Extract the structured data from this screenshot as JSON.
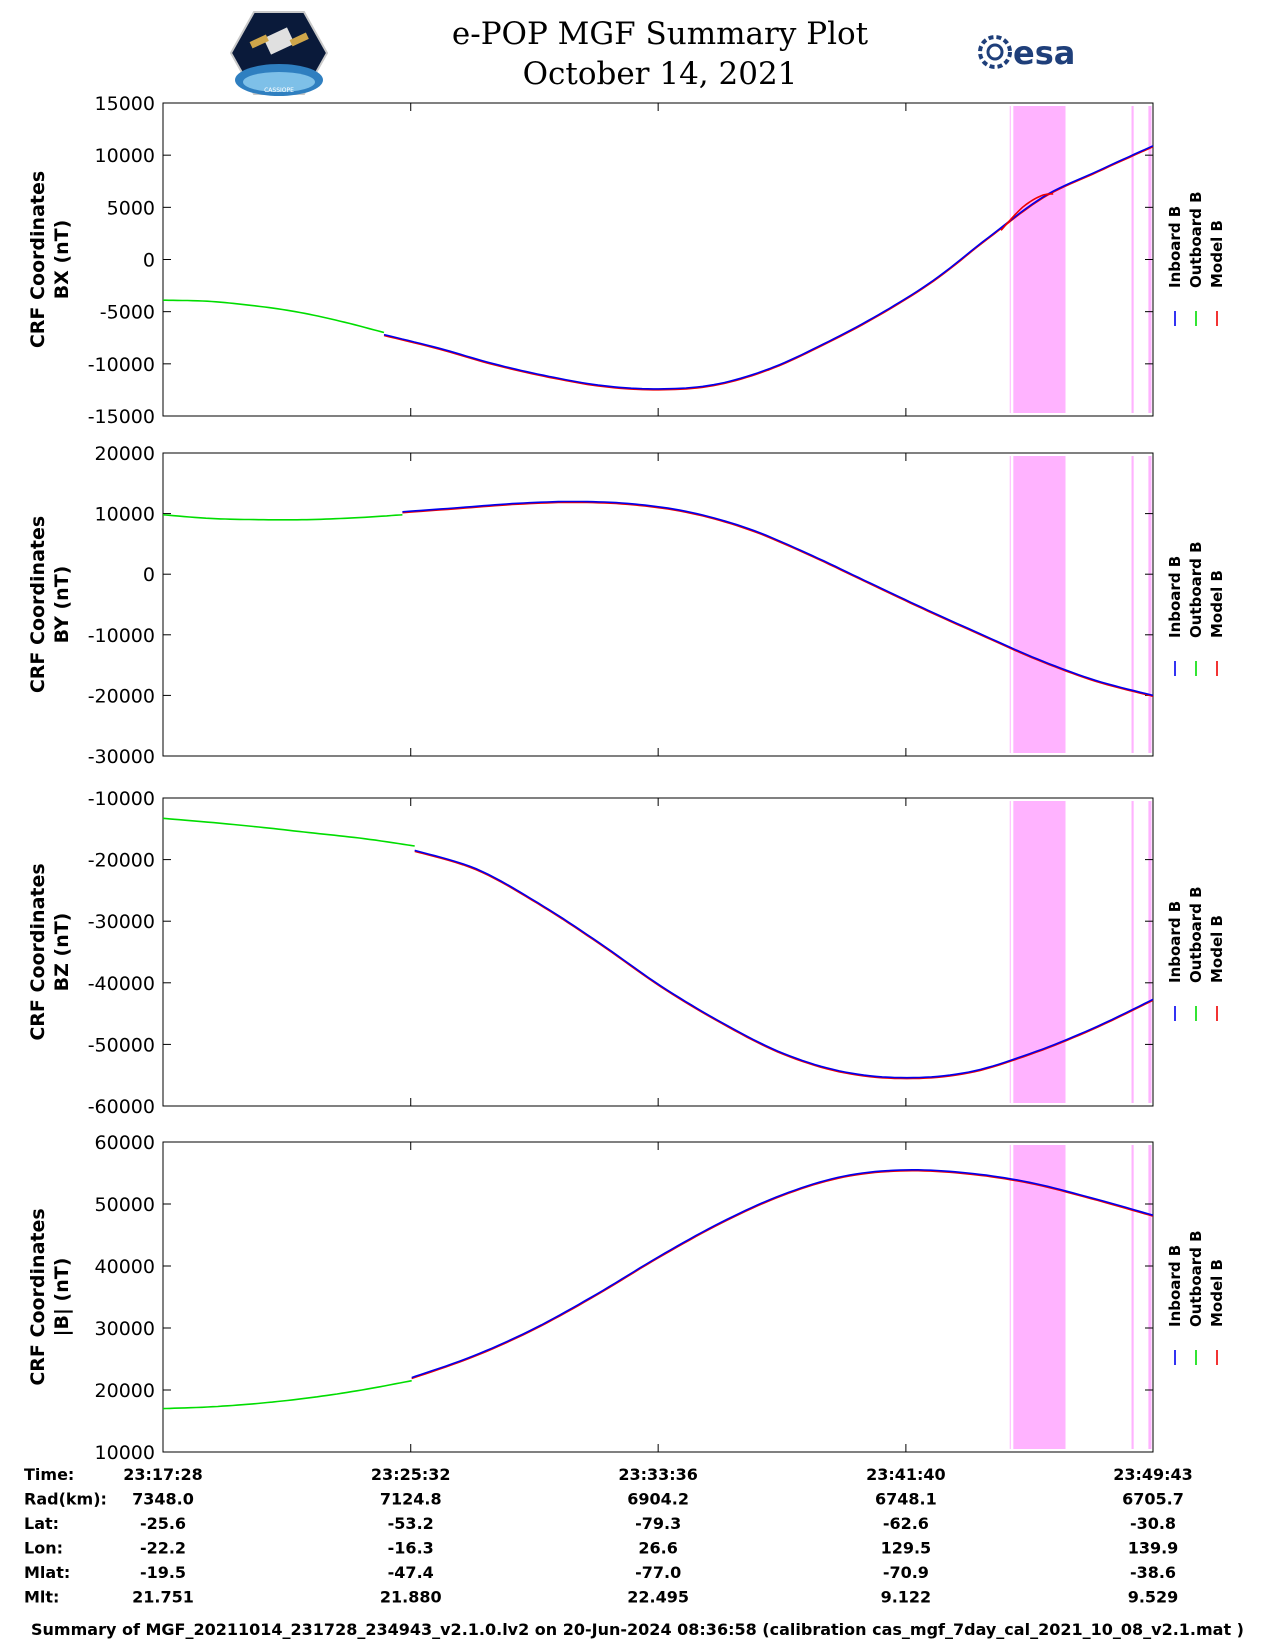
{
  "header": {
    "title_line1": "e-POP MGF Summary Plot",
    "title_line2": "October 14, 2021",
    "right_logo_text": "esa",
    "left_logo_text": "CASSIOPE"
  },
  "legend": [
    "Inboard B",
    "Outboard B",
    "Model B"
  ],
  "colors": {
    "inboard": "#0000ee",
    "outboard": "#00dd00",
    "model": "#ee0000",
    "shade": "#ffb3ff"
  },
  "chart_data": [
    {
      "type": "line",
      "ylabel_line1": "CRF Coordinates",
      "ylabel_line2": "BX (nT)",
      "ylim": [
        -15000,
        15000
      ],
      "yticks": [
        15000,
        10000,
        5000,
        0,
        -5000,
        -10000,
        -15000
      ],
      "x_minutes": [
        0,
        2,
        4,
        6,
        8,
        10,
        12,
        14,
        16,
        18,
        20,
        22,
        24,
        26,
        28,
        30,
        32.25
      ],
      "outboard": [
        -3900,
        -4000,
        -4400,
        -5000,
        -5900,
        -7000
      ],
      "inboard": [
        -7200,
        -8500,
        -10000,
        -11200,
        -12100,
        -12400,
        -12000,
        -10500,
        -8100,
        -5300,
        -2000,
        2100,
        6000,
        8500,
        10900
      ],
      "model_bump": [
        [
          27.3,
          2800
        ],
        [
          28.0,
          5000
        ],
        [
          28.6,
          6100
        ],
        [
          29.0,
          6300
        ]
      ]
    },
    {
      "type": "line",
      "ylabel_line1": "CRF Coordinates",
      "ylabel_line2": "BY (nT)",
      "ylim": [
        -30000,
        20000
      ],
      "yticks": [
        20000,
        10000,
        0,
        -10000,
        -20000,
        -30000
      ],
      "outboard": [
        9800,
        9200,
        9000,
        9000,
        9300,
        9800
      ],
      "inboard": [
        10300,
        11000,
        11700,
        12000,
        11600,
        10200,
        7500,
        3500,
        -1000,
        -5500,
        -9800,
        -14000,
        -17500,
        -20000
      ]
    },
    {
      "type": "line",
      "ylabel_line1": "CRF Coordinates",
      "ylabel_line2": "BZ (nT)",
      "ylim": [
        -60000,
        -10000
      ],
      "yticks": [
        -10000,
        -20000,
        -30000,
        -40000,
        -50000,
        -60000
      ],
      "outboard": [
        -13300,
        -14000,
        -14800,
        -15700,
        -16600,
        -17800
      ],
      "inboard": [
        -18500,
        -21500,
        -27000,
        -33500,
        -40500,
        -46500,
        -51500,
        -54500,
        -55400,
        -54500,
        -51500,
        -47500,
        -42700
      ]
    },
    {
      "type": "line",
      "ylabel_line1": "CRF Coordinates",
      "ylabel_line2": "|B| (nT)",
      "ylim": [
        10000,
        60000
      ],
      "yticks": [
        60000,
        50000,
        40000,
        30000,
        20000,
        10000
      ],
      "outboard": [
        17000,
        17300,
        17900,
        18800,
        20000,
        21500
      ],
      "inboard": [
        22000,
        25500,
        30000,
        35500,
        41500,
        47000,
        51500,
        54500,
        55500,
        55000,
        53500,
        51000,
        48200
      ]
    }
  ],
  "shade_minutes": [
    [
      27.7,
      29.4
    ],
    [
      31.55,
      31.62
    ],
    [
      32.1,
      32.2
    ]
  ],
  "x_ticks_minutes": [
    0,
    8.07,
    16.13,
    24.2,
    32.25
  ],
  "table": {
    "row_labels": [
      "Time:",
      "Rad(km):",
      "Lat:",
      "Lon:",
      "Mlat:",
      "Mlt:"
    ],
    "columns": [
      [
        "23:17:28",
        "7348.0",
        "-25.6",
        "-22.2",
        "-19.5",
        "21.751"
      ],
      [
        "23:25:32",
        "7124.8",
        "-53.2",
        "-16.3",
        "-47.4",
        "21.880"
      ],
      [
        "23:33:36",
        "6904.2",
        "-79.3",
        "26.6",
        "-77.0",
        "22.495"
      ],
      [
        "23:41:40",
        "6748.1",
        "-62.6",
        "129.5",
        "-70.9",
        "9.122"
      ],
      [
        "23:49:43",
        "6705.7",
        "-30.8",
        "139.9",
        "-38.6",
        "9.529"
      ]
    ]
  },
  "footer": "Summary of MGF_20211014_231728_234943_v2.1.0.lv2 on 20-Jun-2024 08:36:58 (calibration cas_mgf_7day_cal_2021_10_08_v2.1.mat )"
}
